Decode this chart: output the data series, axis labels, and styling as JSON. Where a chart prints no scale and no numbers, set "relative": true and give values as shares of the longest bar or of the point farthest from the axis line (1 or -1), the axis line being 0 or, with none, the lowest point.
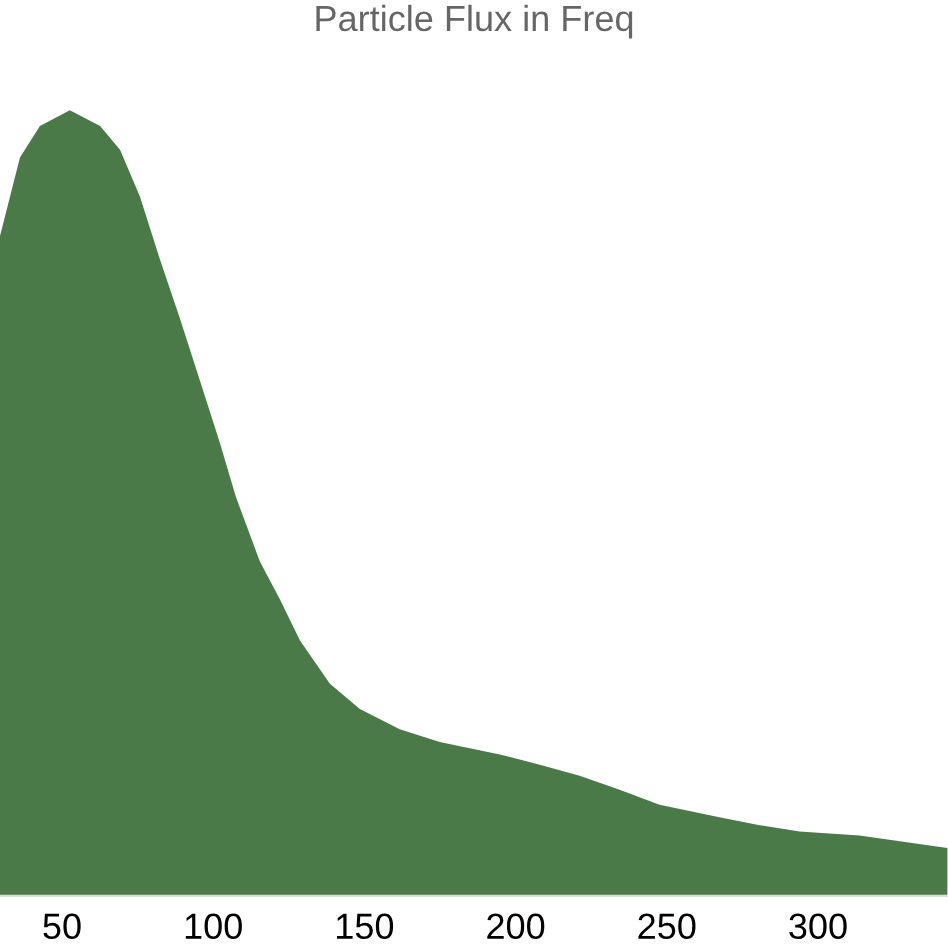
{
  "chart_data": {
    "type": "area",
    "title": "Particle Flux in Freq",
    "relative": true,
    "x": [
      29.5,
      36.1,
      42.7,
      52.6,
      62.6,
      69.2,
      75.8,
      82.4,
      89.0,
      95.6,
      102.2,
      107.5,
      115.4,
      122.0,
      128.7,
      138.6,
      148.5,
      161.7,
      174.9,
      194.8,
      208.0,
      221.2,
      234.4,
      247.6,
      267.4,
      280.7,
      293.9,
      313.7,
      342.8
    ],
    "values": [
      0.84,
      0.94,
      0.98,
      1,
      0.98,
      0.95,
      0.89,
      0.81,
      0.735,
      0.656,
      0.577,
      0.508,
      0.426,
      0.378,
      0.325,
      0.27,
      0.238,
      0.212,
      0.196,
      0.18,
      0.167,
      0.153,
      0.135,
      0.116,
      0.1,
      0.09,
      0.082,
      0.077,
      0.061
    ],
    "color": "#4a7a48",
    "xlim": [
      29.5,
      343
    ],
    "xticks": [
      50,
      100,
      150,
      200,
      250,
      300
    ]
  }
}
